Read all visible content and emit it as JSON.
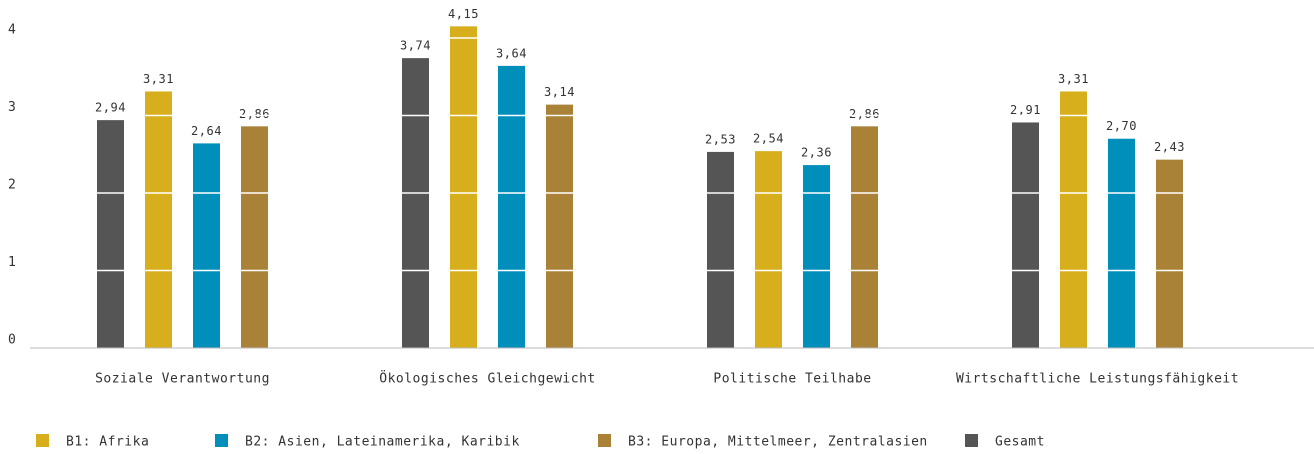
{
  "chart_data": {
    "type": "bar",
    "categories": [
      "Soziale Verantwortung",
      "Ökologisches Gleichgewicht",
      "Politische Teilhabe",
      "Wirtschaftliche Leistungsfähigkeit"
    ],
    "series": [
      {
        "name": "B1: Afrika",
        "color": "#d7ae1c",
        "values": [
          3.31,
          4.15,
          2.54,
          3.31
        ],
        "value_labels": [
          "3,31",
          "4,15",
          "2,54",
          "3,31"
        ]
      },
      {
        "name": "B2: Asien, Lateinamerika, Karibik",
        "color": "#008fbb",
        "values": [
          2.64,
          3.64,
          2.36,
          2.7
        ],
        "value_labels": [
          "2,64",
          "3,64",
          "2,36",
          "2,70"
        ]
      },
      {
        "name": "B3: Europa, Mittelmeer, Zentralasien",
        "color": "#a98137",
        "values": [
          2.86,
          3.14,
          2.86,
          2.43
        ],
        "value_labels": [
          "2,86",
          "3,14",
          "2,86",
          "2,43"
        ]
      },
      {
        "name": "Gesamt",
        "color": "#555555",
        "values": [
          2.94,
          3.74,
          2.53,
          2.91
        ],
        "value_labels": [
          "2,94",
          "3,74",
          "2,53",
          "2,91"
        ]
      }
    ],
    "ylim": [
      0,
      4.49
    ],
    "yticks": [
      0,
      1,
      2,
      3,
      4
    ],
    "grid": true,
    "legend": "bottom"
  }
}
